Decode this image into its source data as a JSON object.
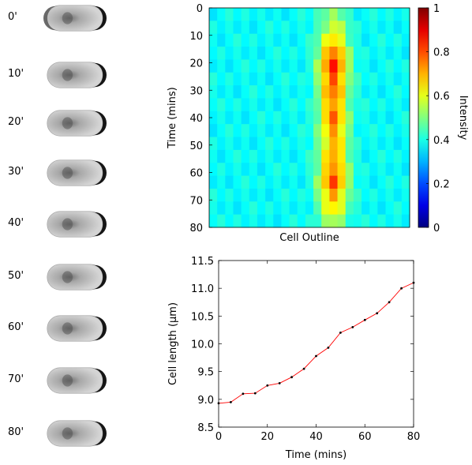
{
  "time_labels": [
    "0'",
    "10'",
    "20'",
    "30'",
    "40'",
    "50'",
    "60'",
    "70'",
    "80'"
  ],
  "chart_data": [
    {
      "type": "heatmap",
      "xlabel": "Cell Outline",
      "ylabel": "Time (mins)",
      "ylim": [
        0,
        80
      ],
      "yticks": [
        0,
        10,
        20,
        30,
        40,
        50,
        60,
        70,
        80
      ],
      "colorbar": {
        "label": "Intensity",
        "range": [
          0,
          1
        ],
        "ticks": [
          0,
          0.2,
          0.4,
          0.6,
          0.8,
          1
        ],
        "tick_labels": [
          "0",
          "0.2",
          "0.4",
          "0.6",
          "0.8",
          "1"
        ],
        "colormap": "jet"
      },
      "description_rows": 17,
      "x_columns": 25,
      "intensity_profile": {
        "background": 0.38,
        "band_center_column": 15,
        "band_peak_per_row": [
          0.52,
          0.58,
          0.66,
          0.78,
          0.84,
          0.8,
          0.76,
          0.74,
          0.76,
          0.72,
          0.7,
          0.72,
          0.76,
          0.8,
          0.72,
          0.64,
          0.56
        ]
      }
    },
    {
      "type": "line",
      "xlabel": "Time (mins)",
      "ylabel": "Cell length (µm)",
      "xlim": [
        0,
        80
      ],
      "ylim": [
        8.5,
        11.5
      ],
      "xticks": [
        0,
        20,
        40,
        60,
        80
      ],
      "yticks": [
        8.5,
        9.0,
        9.5,
        10.0,
        10.5,
        11.0,
        11.5
      ],
      "ytick_labels": [
        "8.5",
        "9.0",
        "9.5",
        "10.0",
        "10.5",
        "11.0",
        "11.5"
      ],
      "series": [
        {
          "color": "#ff0000",
          "x": [
            0,
            5,
            10,
            15,
            20,
            25,
            30,
            35,
            40,
            45,
            50,
            55,
            60,
            65,
            70,
            75,
            80
          ],
          "y": [
            8.93,
            8.95,
            9.1,
            9.11,
            9.25,
            9.29,
            9.4,
            9.55,
            9.78,
            9.93,
            10.2,
            10.3,
            10.43,
            10.55,
            10.75,
            11.0,
            11.1
          ]
        }
      ]
    }
  ]
}
